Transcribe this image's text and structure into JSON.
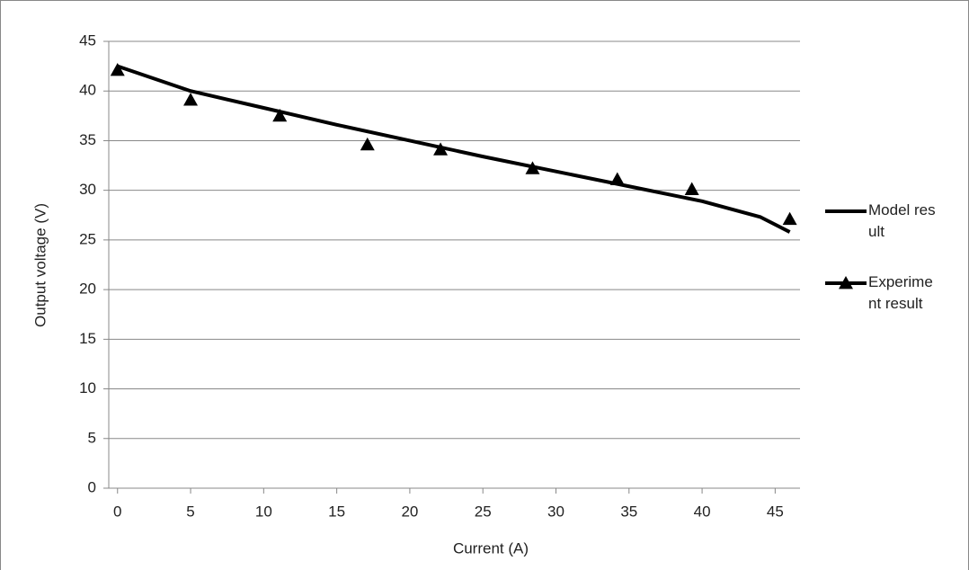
{
  "chart_data": {
    "type": "line",
    "x_label": "Current (A)",
    "y_label": "Output voltage (V)",
    "xlim": [
      -0.6,
      46.7
    ],
    "xticks": [
      0,
      5,
      10,
      15,
      20,
      25,
      30,
      35,
      40,
      45
    ],
    "ylim": [
      0,
      45
    ],
    "yticks": [
      0,
      5,
      10,
      15,
      20,
      25,
      30,
      35,
      40,
      45
    ],
    "grid": true,
    "legend": "right",
    "series": [
      {
        "name": "Model result",
        "color": "#000000",
        "marker": "none",
        "x": [
          0,
          5,
          10,
          15,
          20,
          25,
          30,
          35,
          40,
          44,
          46
        ],
        "values": [
          42.5,
          40.0,
          38.3,
          36.6,
          35.0,
          33.4,
          31.9,
          30.4,
          28.9,
          27.3,
          25.8
        ]
      },
      {
        "name": "Experiment result",
        "color": "#000000",
        "marker": "triangle",
        "x": [
          0,
          5,
          11.1,
          17.1,
          22.1,
          28.4,
          34.2,
          39.3,
          46
        ],
        "values": [
          42.1,
          39.1,
          37.5,
          34.6,
          34.1,
          32.2,
          31.1,
          30.1,
          27.1
        ]
      }
    ]
  }
}
